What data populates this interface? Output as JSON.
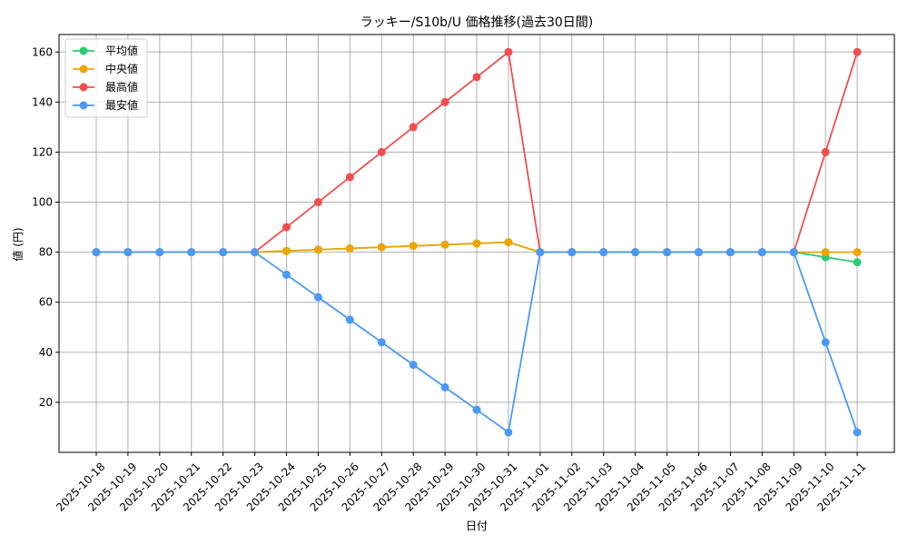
{
  "chart_data": {
    "type": "line",
    "title": "ラッキー/S10b/U 価格推移(過去30日間)",
    "xlabel": "日付",
    "ylabel": "値 (円)",
    "categories": [
      "2025-10-18",
      "2025-10-19",
      "2025-10-20",
      "2025-10-21",
      "2025-10-22",
      "2025-10-23",
      "2025-10-24",
      "2025-10-25",
      "2025-10-26",
      "2025-10-27",
      "2025-10-28",
      "2025-10-29",
      "2025-10-30",
      "2025-10-31",
      "2025-11-01",
      "2025-11-02",
      "2025-11-03",
      "2025-11-04",
      "2025-11-05",
      "2025-11-06",
      "2025-11-07",
      "2025-11-08",
      "2025-11-09",
      "2025-11-10",
      "2025-11-11"
    ],
    "ylim": [
      0,
      167
    ],
    "yticks": [
      20,
      40,
      60,
      80,
      100,
      120,
      140,
      160
    ],
    "grid": true,
    "legend_position": "top-left",
    "series": [
      {
        "name": "平均値",
        "color": "#2ecc71",
        "values": [
          80,
          80,
          80,
          80,
          80,
          80,
          80.5,
          81,
          81.5,
          82,
          82.5,
          83,
          83.5,
          84,
          80,
          80,
          80,
          80,
          80,
          80,
          80,
          80,
          80,
          78,
          76
        ]
      },
      {
        "name": "中央値",
        "color": "#f0a500",
        "values": [
          80,
          80,
          80,
          80,
          80,
          80,
          80.5,
          81,
          81.5,
          82,
          82.5,
          83,
          83.5,
          84,
          80,
          80,
          80,
          80,
          80,
          80,
          80,
          80,
          80,
          80,
          80
        ]
      },
      {
        "name": "最高値",
        "color": "#f04e4e",
        "values": [
          80,
          80,
          80,
          80,
          80,
          80,
          90,
          100,
          110,
          120,
          130,
          140,
          150,
          160,
          80,
          80,
          80,
          80,
          80,
          80,
          80,
          80,
          80,
          120,
          160
        ]
      },
      {
        "name": "最安値",
        "color": "#4a9af5",
        "values": [
          80,
          80,
          80,
          80,
          80,
          80,
          71,
          62,
          53,
          44,
          35,
          26,
          17,
          8,
          80,
          80,
          80,
          80,
          80,
          80,
          80,
          80,
          80,
          44,
          8
        ]
      }
    ]
  }
}
